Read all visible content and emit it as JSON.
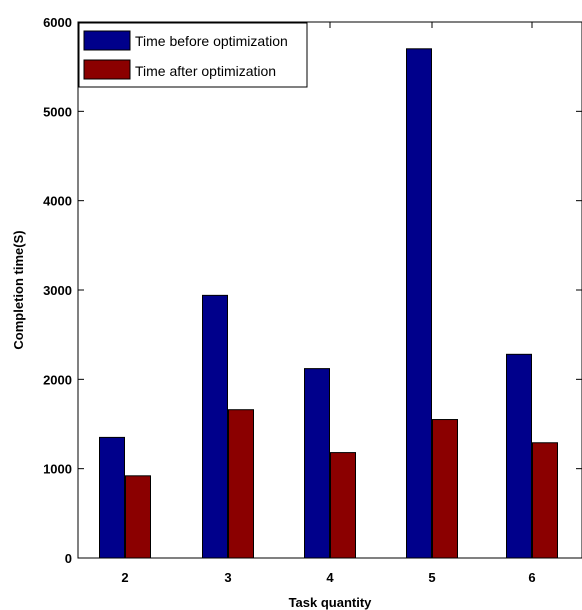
{
  "chart_data": {
    "type": "bar",
    "xlabel": "Task quantity",
    "ylabel": "Completion time(S)",
    "categories": [
      "2",
      "3",
      "4",
      "5",
      "6"
    ],
    "series": [
      {
        "name": "Time before optimization",
        "color": "#00008B",
        "values": [
          1350,
          2940,
          2120,
          5700,
          2280
        ]
      },
      {
        "name": "Time after optimization",
        "color": "#8B0000",
        "values": [
          920,
          1660,
          1180,
          1550,
          1290
        ]
      }
    ],
    "ylim": [
      0,
      6000
    ],
    "yticks": [
      "0",
      "1000",
      "2000",
      "3000",
      "4000",
      "5000",
      "6000"
    ],
    "legend_position": "top-left",
    "grid": false
  }
}
